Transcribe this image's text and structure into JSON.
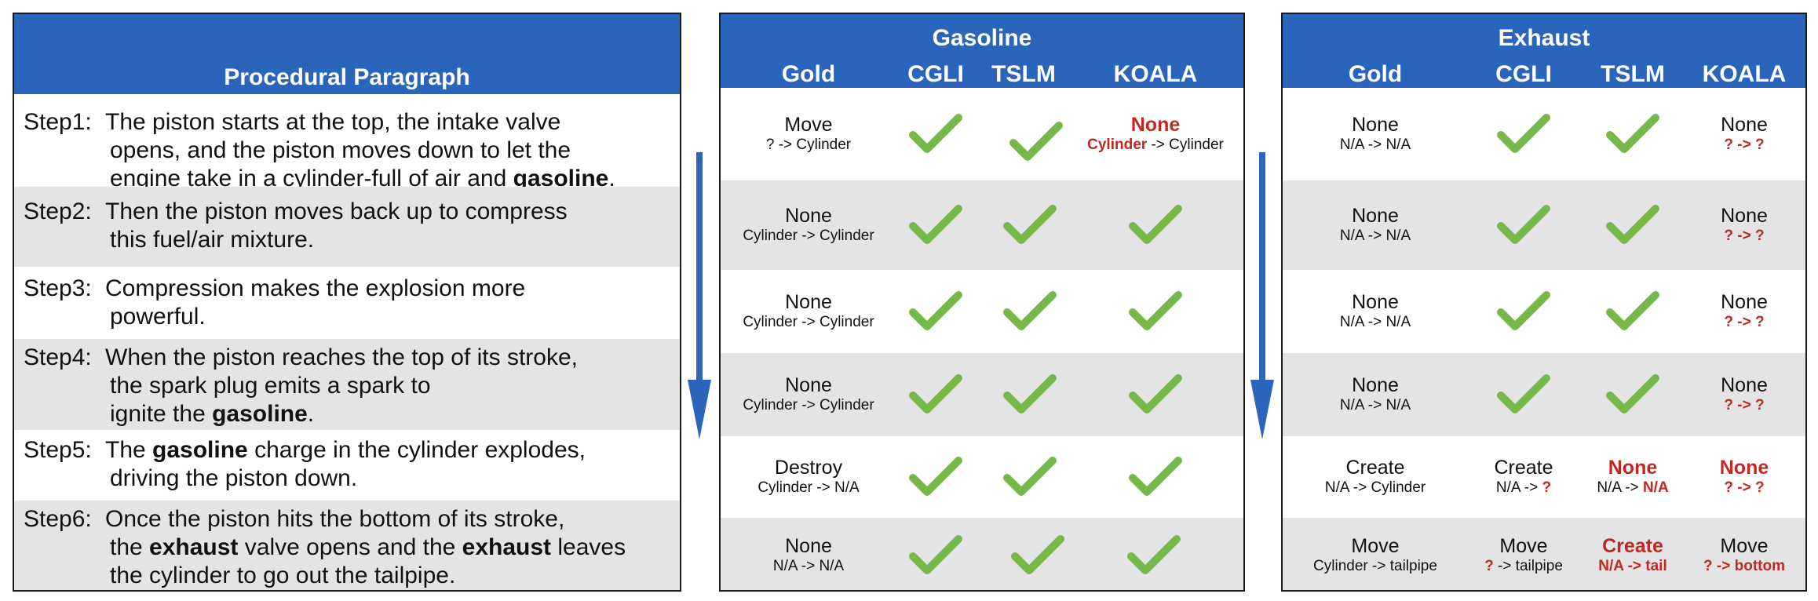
{
  "procedural": {
    "title": "Procedural Paragraph",
    "steps": [
      {
        "label": "Step1:",
        "lines": [
          [
            "The piston starts at the top, the intake valve"
          ],
          [
            "opens, and the piston moves down to let the"
          ],
          [
            "engine take in a cylinder-full of air and ",
            "gasoline",
            "."
          ]
        ]
      },
      {
        "label": "Step2:",
        "lines": [
          [
            "Then the piston moves back up to compress"
          ],
          [
            "this fuel/air mixture."
          ]
        ]
      },
      {
        "label": "Step3:",
        "lines": [
          [
            "Compression makes the explosion more"
          ],
          [
            "powerful."
          ]
        ]
      },
      {
        "label": "Step4:",
        "lines": [
          [
            "When the piston reaches the top of its stroke,"
          ],
          [
            "the spark plug emits a spark to"
          ],
          [
            "ignite the ",
            "gasoline",
            "."
          ]
        ]
      },
      {
        "label": "Step5:",
        "lines": [
          [
            "The ",
            "gasoline",
            " charge in the cylinder explodes,"
          ],
          [
            "driving the piston down."
          ]
        ]
      },
      {
        "label": "Step6:",
        "lines": [
          [
            "Once the piston hits the bottom of its stroke,"
          ],
          [
            "the ",
            "exhaust",
            " valve opens and the ",
            "exhaust",
            " leaves"
          ],
          [
            "the cylinder to go out the tailpipe."
          ]
        ]
      }
    ]
  },
  "gasoline": {
    "title": "Gasoline",
    "columns": [
      "Gold",
      "CGLI",
      "TSLM",
      "KOALA"
    ],
    "rows": [
      {
        "gold": {
          "main": "Move",
          "sub": "? -> Cylinder"
        },
        "cgli": "check",
        "tslm": "check",
        "koala": {
          "main": "None",
          "main_red": true,
          "sub_parts": [
            [
              "Cylinder",
              true
            ],
            [
              " -> Cylinder",
              false
            ]
          ]
        }
      },
      {
        "gold": {
          "main": "None",
          "sub": "Cylinder -> Cylinder"
        },
        "cgli": "check",
        "tslm": "check",
        "koala": "check"
      },
      {
        "gold": {
          "main": "None",
          "sub": "Cylinder -> Cylinder"
        },
        "cgli": "check",
        "tslm": "check",
        "koala": "check"
      },
      {
        "gold": {
          "main": "None",
          "sub": "Cylinder -> Cylinder"
        },
        "cgli": "check",
        "tslm": "check",
        "koala": "check"
      },
      {
        "gold": {
          "main": "Destroy",
          "sub": "Cylinder -> N/A"
        },
        "cgli": "check",
        "tslm": "check",
        "koala": "check"
      },
      {
        "gold": {
          "main": "None",
          "sub": "N/A -> N/A"
        },
        "cgli": "check",
        "tslm": "check",
        "koala": "check"
      }
    ]
  },
  "exhaust": {
    "title": "Exhaust",
    "columns": [
      "Gold",
      "CGLI",
      "TSLM",
      "KOALA"
    ],
    "rows": [
      {
        "gold": {
          "main": "None",
          "sub": "N/A -> N/A"
        },
        "cgli": "check",
        "tslm": "check",
        "koala": {
          "main": "None",
          "main_red": false,
          "sub_parts": [
            [
              "? -> ?",
              true
            ]
          ]
        }
      },
      {
        "gold": {
          "main": "None",
          "sub": "N/A -> N/A"
        },
        "cgli": "check",
        "tslm": "check",
        "koala": {
          "main": "None",
          "main_red": false,
          "sub_parts": [
            [
              "? -> ?",
              true
            ]
          ]
        }
      },
      {
        "gold": {
          "main": "None",
          "sub": "N/A -> N/A"
        },
        "cgli": "check",
        "tslm": "check",
        "koala": {
          "main": "None",
          "main_red": false,
          "sub_parts": [
            [
              "? -> ?",
              true
            ]
          ]
        }
      },
      {
        "gold": {
          "main": "None",
          "sub": "N/A -> N/A"
        },
        "cgli": "check",
        "tslm": "check",
        "koala": {
          "main": "None",
          "main_red": false,
          "sub_parts": [
            [
              "? -> ?",
              true
            ]
          ]
        }
      },
      {
        "gold": {
          "main": "Create",
          "sub": "N/A -> Cylinder"
        },
        "cgli": {
          "main": "Create",
          "main_red": false,
          "sub_parts": [
            [
              "N/A -> ",
              false
            ],
            [
              "?",
              true
            ]
          ]
        },
        "tslm": {
          "main": "None",
          "main_red": true,
          "sub_parts": [
            [
              "N/A -> ",
              false
            ],
            [
              "N/A",
              true
            ]
          ]
        },
        "koala": {
          "main": "None",
          "main_red": true,
          "sub_parts": [
            [
              "? -> ?",
              true
            ]
          ]
        }
      },
      {
        "gold": {
          "main": "Move",
          "sub": "Cylinder -> tailpipe"
        },
        "cgli": {
          "main": "Move",
          "main_red": false,
          "sub_parts": [
            [
              "?",
              true
            ],
            [
              " -> tailpipe",
              false
            ]
          ]
        },
        "tslm": {
          "main": "Create",
          "main_red": true,
          "sub_parts": [
            [
              "N/A -> tail",
              true
            ]
          ]
        },
        "koala": {
          "main": "Move",
          "main_red": false,
          "sub_parts": [
            [
              "? -> bottom",
              true
            ]
          ]
        }
      }
    ]
  },
  "colors": {
    "header": "#2a64bb",
    "check": "#77b84a",
    "red": "#c0291f",
    "shade": "#e4e4e6"
  }
}
